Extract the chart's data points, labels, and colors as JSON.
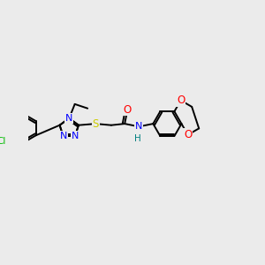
{
  "background_color": "#ebebeb",
  "bond_color": "#000000",
  "atom_colors": {
    "N": "#0000ff",
    "O": "#ff0000",
    "S": "#cccc00",
    "Cl": "#00bb00",
    "C": "#000000",
    "H": "#008080"
  },
  "figsize": [
    3.0,
    3.0
  ],
  "dpi": 100,
  "lw": 1.4
}
